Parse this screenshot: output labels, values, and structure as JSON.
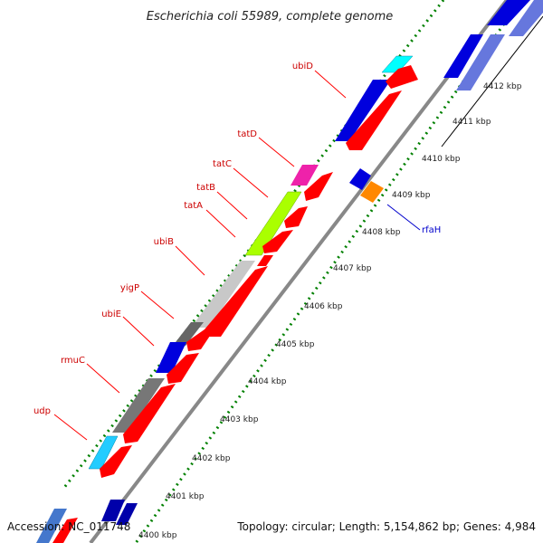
{
  "title": "Escherichia coli 55989, complete genome",
  "accession": "Accession: NC_011748",
  "topology": "Topology: circular; Length: 5,154,862 bp; Genes: 4,984",
  "colors": {
    "backbone": "#888888",
    "tick_dots": "#008000",
    "label_red": "#cc0000",
    "label_blue": "#0000cc"
  },
  "kbp_labels": [
    "4400 kbp",
    "4401 kbp",
    "4402 kbp",
    "4403 kbp",
    "4404 kbp",
    "4405 kbp",
    "4406 kbp",
    "4407 kbp",
    "4408 kbp",
    "4409 kbp",
    "4410 kbp",
    "4411 kbp",
    "4412 kbp"
  ],
  "gene_labels": {
    "ubiD": "ubiD",
    "tatD": "tatD",
    "tatC": "tatC",
    "tatB": "tatB",
    "tatA": "tatA",
    "ubiB": "ubiB",
    "yigP": "yigP",
    "ubiE": "ubiE",
    "rmuC": "rmuC",
    "udp": "udp",
    "rfaH": "rfaH"
  }
}
